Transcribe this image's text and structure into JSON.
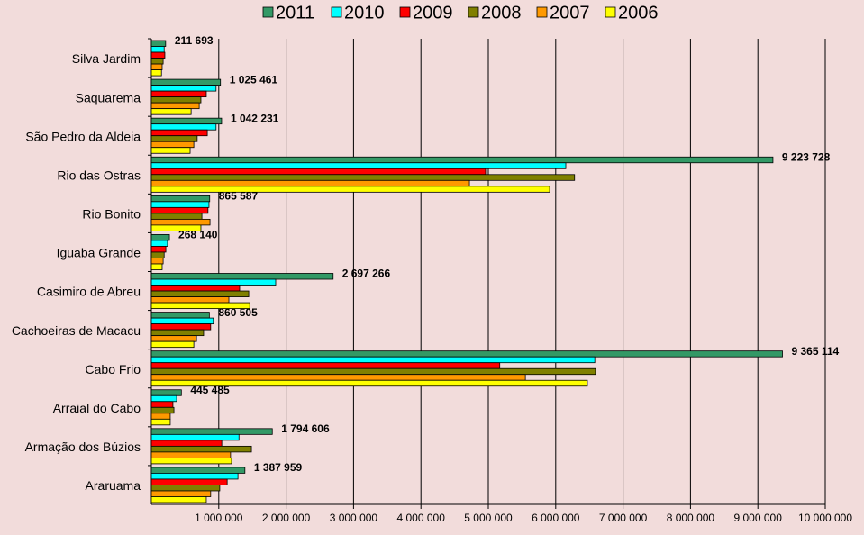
{
  "chart_data": {
    "type": "barh",
    "categories": [
      "Silva Jardim",
      "Saquarema",
      "São Pedro da Aldeia",
      "Rio das Ostras",
      "Rio Bonito",
      "Iguaba Grande",
      "Casimiro de Abreu",
      "Cachoeiras de Macacu",
      "Cabo Frio",
      "Arraial do Cabo",
      "Armação dos Búzios",
      "Araruama"
    ],
    "series": [
      {
        "name": "2011",
        "color": "#339966",
        "values": [
          211693,
          1025461,
          1042231,
          9223728,
          865587,
          268140,
          2697266,
          860505,
          9365114,
          445485,
          1794606,
          1387959
        ],
        "value_labels": [
          "211 693",
          "1 025 461",
          "1 042 231",
          "9 223 728",
          "865 587",
          "268 140",
          "2 697 266",
          "860 505",
          "9 365 114",
          "445 485",
          "1 794 606",
          "1 387 959"
        ]
      },
      {
        "name": "2010",
        "color": "#00ffff",
        "values": [
          190000,
          960000,
          960000,
          6150000,
          855000,
          240000,
          1845000,
          920000,
          6580000,
          375000,
          1300000,
          1285000
        ]
      },
      {
        "name": "2009",
        "color": "#ff0000",
        "values": [
          200000,
          815000,
          830000,
          4960000,
          840000,
          215000,
          1310000,
          880000,
          5170000,
          320000,
          1045000,
          1125000
        ]
      },
      {
        "name": "2008",
        "color": "#808000",
        "values": [
          175000,
          735000,
          680000,
          6280000,
          750000,
          190000,
          1445000,
          775000,
          6590000,
          335000,
          1485000,
          1015000
        ]
      },
      {
        "name": "2007",
        "color": "#ff9900",
        "values": [
          160000,
          710000,
          630000,
          4720000,
          870000,
          175000,
          1150000,
          670000,
          5550000,
          280000,
          1175000,
          880000
        ]
      },
      {
        "name": "2006",
        "color": "#ffff00",
        "values": [
          150000,
          590000,
          575000,
          5910000,
          735000,
          160000,
          1460000,
          630000,
          6470000,
          280000,
          1190000,
          815000
        ]
      }
    ],
    "xlim": [
      0,
      10000000
    ],
    "xticks": [
      {
        "value": 1000000,
        "label": "1 000 000"
      },
      {
        "value": 2000000,
        "label": "2 000 000"
      },
      {
        "value": 3000000,
        "label": "3 000 000"
      },
      {
        "value": 4000000,
        "label": "4 000 000"
      },
      {
        "value": 5000000,
        "label": "5 000 000"
      },
      {
        "value": 6000000,
        "label": "6 000 000"
      },
      {
        "value": 7000000,
        "label": "7 000 000"
      },
      {
        "value": 8000000,
        "label": "8 000 000"
      },
      {
        "value": 9000000,
        "label": "9 000 000"
      },
      {
        "value": 10000000,
        "label": "10 000 000"
      }
    ],
    "grid": true,
    "legend": "top"
  }
}
